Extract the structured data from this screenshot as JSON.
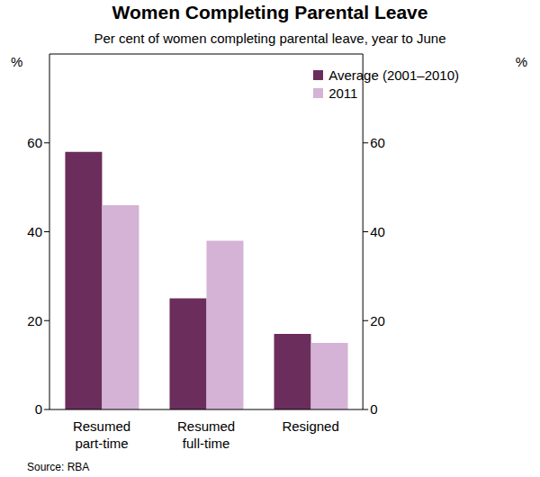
{
  "chart_data": {
    "type": "bar",
    "title": "Women Completing Parental Leave",
    "subtitle": "Per cent of women completing parental leave, year to June",
    "source": "Source: RBA",
    "ylabel": "%",
    "categories": [
      "Resumed part-time",
      "Resumed full-time",
      "Resigned"
    ],
    "series": [
      {
        "name": "Average (2001–2010)",
        "color": "#6b2d5c",
        "values": [
          58,
          25,
          17
        ]
      },
      {
        "name": "2011",
        "color": "#d4b3d6",
        "values": [
          46,
          38,
          15
        ]
      }
    ],
    "ylim": [
      0,
      80
    ],
    "yticks": [
      0,
      20,
      40,
      60
    ],
    "grid": false,
    "legend": "upper right"
  }
}
